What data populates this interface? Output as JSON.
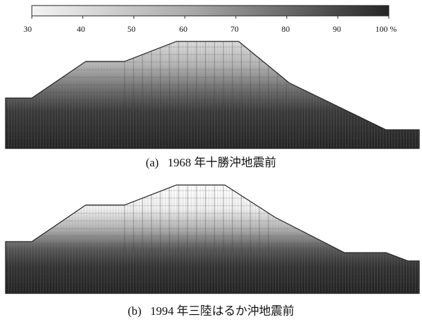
{
  "colorbar": {
    "tick_labels": [
      "30",
      "40",
      "50",
      "60",
      "70",
      "80",
      "90",
      "100 %"
    ],
    "min": 30,
    "max": 100,
    "low_color": "#f2f2f2",
    "high_color": "#222222"
  },
  "panels": [
    {
      "id": "a",
      "caption_label": "(a)",
      "caption_text": "1968 年十勝沖地震前"
    },
    {
      "id": "b",
      "caption_label": "(b)",
      "caption_text": "1994 年三陸はるか沖地震前"
    }
  ]
}
